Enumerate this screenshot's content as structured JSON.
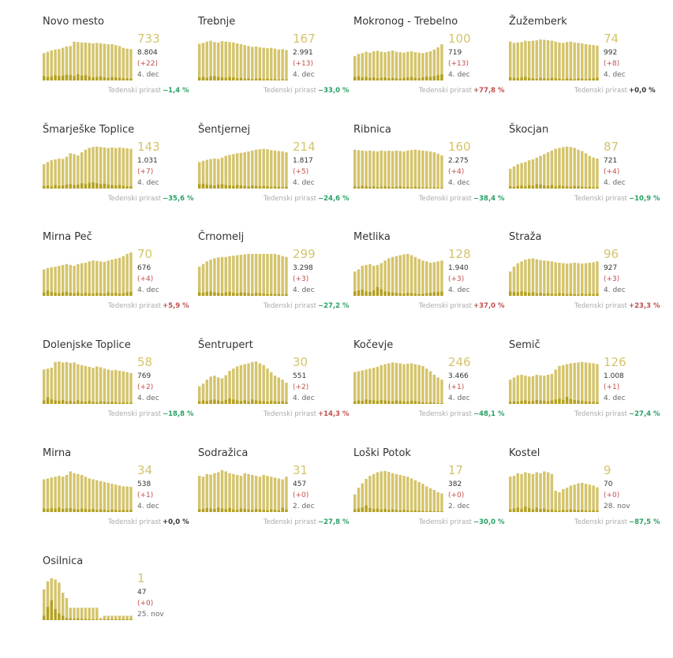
{
  "labels": {
    "growth": "Tedenski prirast"
  },
  "colors": {
    "bar": "#d4c46c",
    "bar_new": "#b3a020",
    "active_text": "#d4c46c",
    "up": "#c0504d",
    "down": "#27a163",
    "neutral": "#333333"
  },
  "chart_data": [
    {
      "type": "bar",
      "title": "Novo mesto",
      "active": "733",
      "total": "8.804",
      "new": "(+22)",
      "date": "4. dec",
      "growth": "−1,4 %",
      "trend": "down",
      "values": [
        0.62,
        0.65,
        0.68,
        0.7,
        0.71,
        0.74,
        0.77,
        0.78,
        0.88,
        0.87,
        0.86,
        0.86,
        0.85,
        0.84,
        0.85,
        0.84,
        0.83,
        0.82,
        0.82,
        0.8,
        0.78,
        0.74,
        0.72,
        0.71
      ],
      "new_values": [
        0.1,
        0.08,
        0.09,
        0.12,
        0.1,
        0.11,
        0.13,
        0.12,
        0.1,
        0.14,
        0.11,
        0.12,
        0.09,
        0.07,
        0.08,
        0.09,
        0.07,
        0.06,
        0.08,
        0.07,
        0.06,
        0.05,
        0.05,
        0.04
      ]
    },
    {
      "type": "bar",
      "title": "Trebnje",
      "active": "167",
      "total": "2.991",
      "new": "(+13)",
      "date": "4. dec",
      "growth": "−33,0 %",
      "trend": "down",
      "values": [
        0.83,
        0.85,
        0.88,
        0.9,
        0.87,
        0.86,
        0.89,
        0.88,
        0.87,
        0.86,
        0.84,
        0.82,
        0.8,
        0.78,
        0.76,
        0.77,
        0.75,
        0.74,
        0.73,
        0.74,
        0.72,
        0.7,
        0.71,
        0.69
      ],
      "new_values": [
        0.07,
        0.08,
        0.06,
        0.09,
        0.1,
        0.08,
        0.07,
        0.06,
        0.08,
        0.07,
        0.05,
        0.06,
        0.04,
        0.05,
        0.03,
        0.04,
        0.05,
        0.03,
        0.04,
        0.03,
        0.03,
        0.02,
        0.03,
        0.02
      ]
    },
    {
      "type": "bar",
      "title": "Mokronog - Trebelno",
      "active": "100",
      "total": "719",
      "new": "(+13)",
      "date": "4. dec",
      "growth": "+77,8 %",
      "trend": "up",
      "values": [
        0.55,
        0.6,
        0.62,
        0.65,
        0.63,
        0.66,
        0.67,
        0.65,
        0.64,
        0.66,
        0.68,
        0.65,
        0.64,
        0.63,
        0.65,
        0.66,
        0.64,
        0.63,
        0.62,
        0.64,
        0.66,
        0.7,
        0.75,
        0.82
      ],
      "new_values": [
        0.08,
        0.09,
        0.07,
        0.08,
        0.06,
        0.07,
        0.05,
        0.06,
        0.07,
        0.05,
        0.06,
        0.05,
        0.04,
        0.06,
        0.07,
        0.08,
        0.06,
        0.05,
        0.07,
        0.09,
        0.08,
        0.1,
        0.12,
        0.14
      ]
    },
    {
      "type": "bar",
      "title": "Žužemberk",
      "active": "74",
      "total": "992",
      "new": "(+8)",
      "date": "4. dec",
      "growth": "+0,0 %",
      "trend": "neutral",
      "values": [
        0.88,
        0.85,
        0.86,
        0.87,
        0.9,
        0.89,
        0.9,
        0.91,
        0.93,
        0.92,
        0.91,
        0.9,
        0.88,
        0.86,
        0.85,
        0.87,
        0.88,
        0.86,
        0.85,
        0.84,
        0.82,
        0.81,
        0.8,
        0.79
      ],
      "new_values": [
        0.07,
        0.06,
        0.05,
        0.07,
        0.08,
        0.06,
        0.05,
        0.04,
        0.06,
        0.05,
        0.04,
        0.06,
        0.05,
        0.04,
        0.03,
        0.05,
        0.04,
        0.03,
        0.05,
        0.04,
        0.03,
        0.04,
        0.05,
        0.06
      ]
    },
    {
      "type": "bar",
      "title": "Šmarješke Toplice",
      "active": "143",
      "total": "1.031",
      "new": "(+7)",
      "date": "4. dec",
      "growth": "−35,6 %",
      "trend": "down",
      "values": [
        0.55,
        0.6,
        0.64,
        0.66,
        0.68,
        0.67,
        0.72,
        0.8,
        0.78,
        0.75,
        0.82,
        0.88,
        0.92,
        0.94,
        0.95,
        0.94,
        0.93,
        0.92,
        0.93,
        0.92,
        0.93,
        0.92,
        0.91,
        0.9
      ],
      "new_values": [
        0.06,
        0.07,
        0.05,
        0.08,
        0.06,
        0.07,
        0.09,
        0.1,
        0.08,
        0.09,
        0.12,
        0.1,
        0.13,
        0.14,
        0.12,
        0.1,
        0.11,
        0.09,
        0.08,
        0.07,
        0.08,
        0.06,
        0.05,
        0.05
      ]
    },
    {
      "type": "bar",
      "title": "Šentjernej",
      "active": "214",
      "total": "1.817",
      "new": "(+5)",
      "date": "4. dec",
      "growth": "−24,6 %",
      "trend": "down",
      "values": [
        0.6,
        0.63,
        0.65,
        0.67,
        0.68,
        0.67,
        0.7,
        0.74,
        0.76,
        0.78,
        0.8,
        0.81,
        0.82,
        0.84,
        0.86,
        0.88,
        0.89,
        0.9,
        0.89,
        0.87,
        0.86,
        0.85,
        0.84,
        0.82
      ],
      "new_values": [
        0.1,
        0.11,
        0.09,
        0.08,
        0.07,
        0.09,
        0.1,
        0.08,
        0.07,
        0.06,
        0.08,
        0.07,
        0.06,
        0.05,
        0.07,
        0.06,
        0.05,
        0.06,
        0.05,
        0.04,
        0.05,
        0.04,
        0.03,
        0.04
      ]
    },
    {
      "type": "bar",
      "title": "Ribnica",
      "active": "160",
      "total": "2.275",
      "new": "(+4)",
      "date": "4. dec",
      "growth": "−38,4 %",
      "trend": "down",
      "values": [
        0.88,
        0.87,
        0.86,
        0.85,
        0.86,
        0.85,
        0.84,
        0.86,
        0.85,
        0.86,
        0.85,
        0.86,
        0.85,
        0.84,
        0.86,
        0.87,
        0.88,
        0.87,
        0.86,
        0.85,
        0.84,
        0.82,
        0.79,
        0.75
      ],
      "new_values": [
        0.05,
        0.04,
        0.06,
        0.05,
        0.04,
        0.05,
        0.03,
        0.04,
        0.05,
        0.04,
        0.03,
        0.04,
        0.05,
        0.03,
        0.04,
        0.03,
        0.04,
        0.03,
        0.02,
        0.03,
        0.02,
        0.03,
        0.02,
        0.02
      ]
    },
    {
      "type": "bar",
      "title": "Škocjan",
      "active": "87",
      "total": "721",
      "new": "(+4)",
      "date": "4. dec",
      "growth": "−10,9 %",
      "trend": "down",
      "values": [
        0.45,
        0.5,
        0.55,
        0.58,
        0.6,
        0.64,
        0.66,
        0.7,
        0.74,
        0.78,
        0.82,
        0.86,
        0.9,
        0.92,
        0.94,
        0.95,
        0.94,
        0.92,
        0.88,
        0.85,
        0.8,
        0.74,
        0.7,
        0.68
      ],
      "new_values": [
        0.05,
        0.04,
        0.06,
        0.07,
        0.05,
        0.08,
        0.06,
        0.1,
        0.09,
        0.07,
        0.06,
        0.08,
        0.05,
        0.07,
        0.06,
        0.05,
        0.04,
        0.06,
        0.05,
        0.04,
        0.03,
        0.04,
        0.03,
        0.03
      ]
    },
    {
      "type": "bar",
      "title": "Mirna Peč",
      "active": "70",
      "total": "676",
      "new": "(+4)",
      "date": "4. dec",
      "growth": "+5,9 %",
      "trend": "up",
      "values": [
        0.6,
        0.63,
        0.65,
        0.66,
        0.68,
        0.7,
        0.72,
        0.7,
        0.68,
        0.72,
        0.74,
        0.75,
        0.78,
        0.8,
        0.79,
        0.78,
        0.77,
        0.8,
        0.82,
        0.84,
        0.86,
        0.9,
        0.95,
        0.98
      ],
      "new_values": [
        0.08,
        0.12,
        0.09,
        0.07,
        0.06,
        0.08,
        0.09,
        0.07,
        0.06,
        0.08,
        0.05,
        0.07,
        0.06,
        0.05,
        0.07,
        0.06,
        0.05,
        0.08,
        0.06,
        0.07,
        0.05,
        0.06,
        0.08,
        0.09
      ]
    },
    {
      "type": "bar",
      "title": "Črnomelj",
      "active": "299",
      "total": "3.298",
      "new": "(+3)",
      "date": "4. dec",
      "growth": "−27,2 %",
      "trend": "down",
      "values": [
        0.66,
        0.72,
        0.78,
        0.82,
        0.85,
        0.87,
        0.88,
        0.88,
        0.9,
        0.91,
        0.92,
        0.93,
        0.94,
        0.95,
        0.95,
        0.95,
        0.95,
        0.95,
        0.95,
        0.95,
        0.95,
        0.93,
        0.9,
        0.88
      ],
      "new_values": [
        0.08,
        0.07,
        0.09,
        0.1,
        0.08,
        0.07,
        0.06,
        0.08,
        0.09,
        0.07,
        0.06,
        0.08,
        0.07,
        0.06,
        0.05,
        0.07,
        0.06,
        0.05,
        0.04,
        0.05,
        0.04,
        0.04,
        0.03,
        0.04
      ]
    },
    {
      "type": "bar",
      "title": "Metlika",
      "active": "128",
      "total": "1.940",
      "new": "(+3)",
      "date": "4. dec",
      "growth": "+37,0 %",
      "trend": "up",
      "values": [
        0.55,
        0.6,
        0.68,
        0.7,
        0.72,
        0.68,
        0.7,
        0.74,
        0.8,
        0.85,
        0.88,
        0.9,
        0.92,
        0.94,
        0.95,
        0.92,
        0.88,
        0.84,
        0.8,
        0.78,
        0.75,
        0.76,
        0.78,
        0.8
      ],
      "new_values": [
        0.1,
        0.12,
        0.14,
        0.1,
        0.09,
        0.12,
        0.2,
        0.15,
        0.1,
        0.09,
        0.08,
        0.07,
        0.06,
        0.05,
        0.07,
        0.06,
        0.05,
        0.04,
        0.05,
        0.06,
        0.07,
        0.08,
        0.09,
        0.1
      ]
    },
    {
      "type": "bar",
      "title": "Straža",
      "active": "96",
      "total": "927",
      "new": "(+3)",
      "date": "4. dec",
      "growth": "+23,3 %",
      "trend": "up",
      "values": [
        0.55,
        0.66,
        0.74,
        0.78,
        0.82,
        0.84,
        0.85,
        0.83,
        0.81,
        0.8,
        0.79,
        0.78,
        0.76,
        0.75,
        0.74,
        0.73,
        0.74,
        0.75,
        0.74,
        0.73,
        0.74,
        0.75,
        0.76,
        0.78
      ],
      "new_values": [
        0.1,
        0.09,
        0.08,
        0.1,
        0.09,
        0.07,
        0.08,
        0.06,
        0.07,
        0.05,
        0.06,
        0.05,
        0.04,
        0.06,
        0.05,
        0.04,
        0.05,
        0.04,
        0.03,
        0.05,
        0.04,
        0.05,
        0.04,
        0.05
      ]
    },
    {
      "type": "bar",
      "title": "Dolenjske Toplice",
      "active": "58",
      "total": "769",
      "new": "(+2)",
      "date": "4. dec",
      "growth": "−18,8 %",
      "trend": "down",
      "values": [
        0.78,
        0.8,
        0.82,
        0.95,
        0.96,
        0.94,
        0.95,
        0.93,
        0.94,
        0.9,
        0.88,
        0.86,
        0.84,
        0.82,
        0.85,
        0.83,
        0.8,
        0.78,
        0.76,
        0.77,
        0.75,
        0.74,
        0.72,
        0.7
      ],
      "new_values": [
        0.08,
        0.15,
        0.1,
        0.08,
        0.07,
        0.09,
        0.06,
        0.07,
        0.05,
        0.08,
        0.06,
        0.05,
        0.07,
        0.05,
        0.04,
        0.06,
        0.05,
        0.04,
        0.05,
        0.04,
        0.03,
        0.04,
        0.03,
        0.03
      ]
    },
    {
      "type": "bar",
      "title": "Šentrupert",
      "active": "30",
      "total": "551",
      "new": "(+2)",
      "date": "4. dec",
      "growth": "+14,3 %",
      "trend": "up",
      "values": [
        0.4,
        0.46,
        0.55,
        0.62,
        0.64,
        0.6,
        0.58,
        0.65,
        0.75,
        0.8,
        0.85,
        0.88,
        0.9,
        0.92,
        0.95,
        0.96,
        0.92,
        0.88,
        0.8,
        0.72,
        0.64,
        0.6,
        0.55,
        0.48
      ],
      "new_values": [
        0.06,
        0.08,
        0.07,
        0.09,
        0.1,
        0.08,
        0.06,
        0.09,
        0.12,
        0.1,
        0.08,
        0.07,
        0.09,
        0.06,
        0.1,
        0.08,
        0.07,
        0.06,
        0.05,
        0.07,
        0.06,
        0.05,
        0.06,
        0.04
      ]
    },
    {
      "type": "bar",
      "title": "Kočevje",
      "active": "246",
      "total": "3.466",
      "new": "(+1)",
      "date": "4. dec",
      "growth": "−48,1 %",
      "trend": "down",
      "values": [
        0.72,
        0.74,
        0.76,
        0.78,
        0.8,
        0.82,
        0.84,
        0.88,
        0.9,
        0.92,
        0.94,
        0.93,
        0.92,
        0.9,
        0.91,
        0.92,
        0.9,
        0.88,
        0.86,
        0.8,
        0.74,
        0.66,
        0.6,
        0.55
      ],
      "new_values": [
        0.06,
        0.08,
        0.07,
        0.1,
        0.09,
        0.08,
        0.07,
        0.09,
        0.08,
        0.07,
        0.06,
        0.08,
        0.07,
        0.06,
        0.05,
        0.07,
        0.06,
        0.05,
        0.04,
        0.03,
        0.04,
        0.03,
        0.02,
        0.02
      ]
    },
    {
      "type": "bar",
      "title": "Semič",
      "active": "126",
      "total": "1.008",
      "new": "(+1)",
      "date": "4. dec",
      "growth": "−27,4 %",
      "trend": "down",
      "values": [
        0.55,
        0.6,
        0.65,
        0.66,
        0.64,
        0.62,
        0.63,
        0.66,
        0.65,
        0.64,
        0.66,
        0.68,
        0.78,
        0.86,
        0.88,
        0.9,
        0.92,
        0.93,
        0.94,
        0.95,
        0.94,
        0.93,
        0.92,
        0.9
      ],
      "new_values": [
        0.05,
        0.06,
        0.05,
        0.07,
        0.08,
        0.06,
        0.07,
        0.09,
        0.08,
        0.07,
        0.06,
        0.08,
        0.1,
        0.12,
        0.09,
        0.16,
        0.11,
        0.09,
        0.08,
        0.07,
        0.06,
        0.05,
        0.05,
        0.04
      ]
    },
    {
      "type": "bar",
      "title": "Mirna",
      "active": "34",
      "total": "538",
      "new": "(+1)",
      "date": "4. dec",
      "growth": "+0,0 %",
      "trend": "neutral",
      "values": [
        0.74,
        0.76,
        0.78,
        0.8,
        0.82,
        0.8,
        0.84,
        0.92,
        0.88,
        0.86,
        0.84,
        0.8,
        0.76,
        0.74,
        0.72,
        0.7,
        0.68,
        0.66,
        0.64,
        0.62,
        0.6,
        0.58,
        0.58,
        0.57
      ],
      "new_values": [
        0.08,
        0.07,
        0.09,
        0.08,
        0.1,
        0.07,
        0.08,
        0.09,
        0.07,
        0.06,
        0.08,
        0.07,
        0.06,
        0.07,
        0.05,
        0.06,
        0.05,
        0.04,
        0.06,
        0.05,
        0.04,
        0.05,
        0.04,
        0.05
      ]
    },
    {
      "type": "bar",
      "title": "Sodražica",
      "active": "31",
      "total": "457",
      "new": "(+0)",
      "date": "2. dec",
      "growth": "−27,8 %",
      "trend": "down",
      "values": [
        0.82,
        0.8,
        0.86,
        0.85,
        0.88,
        0.9,
        0.95,
        0.92,
        0.88,
        0.86,
        0.84,
        0.82,
        0.88,
        0.86,
        0.84,
        0.82,
        0.8,
        0.84,
        0.82,
        0.8,
        0.78,
        0.76,
        0.74,
        0.8
      ],
      "new_values": [
        0.06,
        0.07,
        0.09,
        0.08,
        0.07,
        0.1,
        0.08,
        0.07,
        0.09,
        0.06,
        0.05,
        0.08,
        0.07,
        0.06,
        0.05,
        0.07,
        0.06,
        0.05,
        0.04,
        0.06,
        0.05,
        0.04,
        0.1,
        0.06
      ]
    },
    {
      "type": "bar",
      "title": "Loški Potok",
      "active": "17",
      "total": "382",
      "new": "(+0)",
      "date": "2. dec",
      "growth": "−30,0 %",
      "trend": "down",
      "values": [
        0.4,
        0.55,
        0.65,
        0.75,
        0.82,
        0.86,
        0.9,
        0.92,
        0.93,
        0.91,
        0.88,
        0.86,
        0.84,
        0.82,
        0.8,
        0.76,
        0.72,
        0.68,
        0.64,
        0.58,
        0.54,
        0.5,
        0.45,
        0.42
      ],
      "new_values": [
        0.06,
        0.08,
        0.1,
        0.15,
        0.09,
        0.07,
        0.08,
        0.06,
        0.07,
        0.05,
        0.06,
        0.05,
        0.04,
        0.05,
        0.04,
        0.03,
        0.04,
        0.03,
        0.03,
        0.02,
        0.03,
        0.02,
        0.02,
        0.02
      ]
    },
    {
      "type": "bar",
      "title": "Kostel",
      "active": "9",
      "total": "70",
      "new": "(+0)",
      "date": "28. nov",
      "growth": "−87,5 %",
      "trend": "down",
      "values": [
        0.8,
        0.82,
        0.88,
        0.86,
        0.9,
        0.88,
        0.86,
        0.9,
        0.88,
        0.92,
        0.9,
        0.86,
        0.48,
        0.45,
        0.52,
        0.55,
        0.6,
        0.62,
        0.65,
        0.66,
        0.64,
        0.62,
        0.6,
        0.56
      ],
      "new_values": [
        0.06,
        0.08,
        0.1,
        0.07,
        0.12,
        0.09,
        0.06,
        0.1,
        0.07,
        0.08,
        0.05,
        0.06,
        0.04,
        0.03,
        0.05,
        0.04,
        0.06,
        0.05,
        0.04,
        0.05,
        0.04,
        0.03,
        0.04,
        0.03
      ]
    },
    {
      "type": "bar",
      "title": "Osilnica",
      "active": "1",
      "total": "47",
      "new": "(+0)",
      "date": "25. nov",
      "growth": "",
      "trend": "neutral",
      "values": [
        0.7,
        0.88,
        0.95,
        0.92,
        0.85,
        0.62,
        0.5,
        0.28,
        0.28,
        0.28,
        0.28,
        0.28,
        0.28,
        0.28,
        0.28,
        0.05,
        0.1,
        0.1,
        0.1,
        0.1,
        0.1,
        0.1,
        0.1,
        0.1
      ],
      "new_values": [
        0.1,
        0.3,
        0.45,
        0.25,
        0.15,
        0.1,
        0.05,
        0.04,
        0.03,
        0.04,
        0.03,
        0.03,
        0.02,
        0.02,
        0.02,
        0.01,
        0.02,
        0.02,
        0.02,
        0.02,
        0.02,
        0.02,
        0.02,
        0.02
      ]
    }
  ]
}
